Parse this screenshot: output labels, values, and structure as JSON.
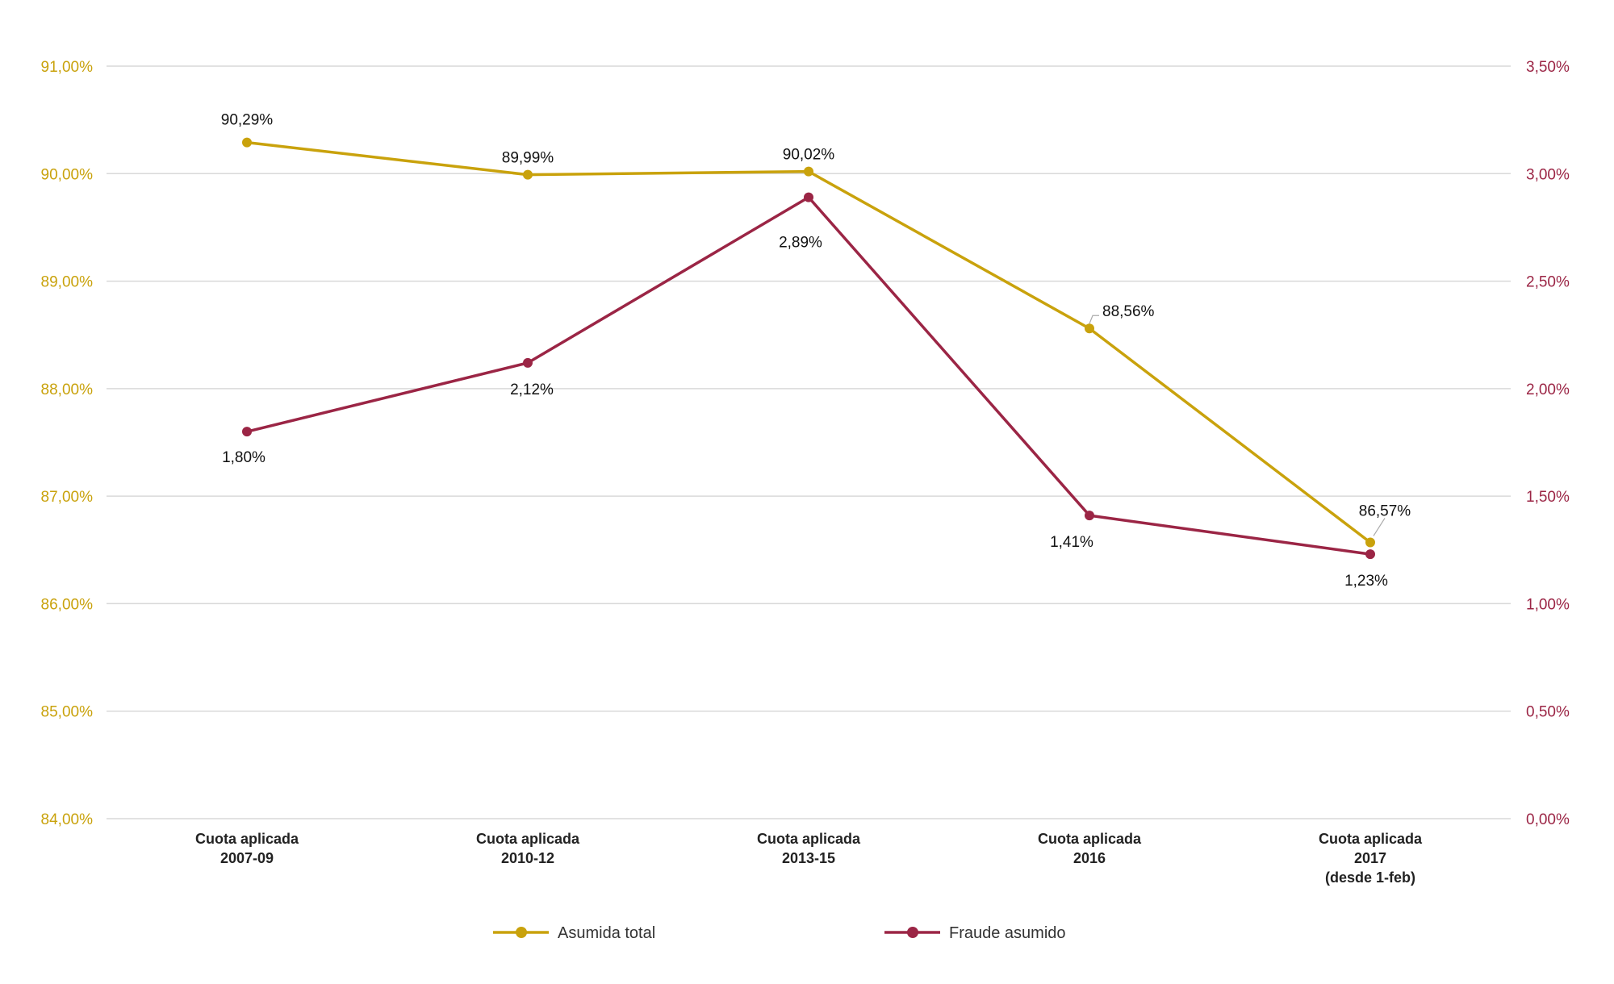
{
  "chart_data": {
    "type": "line",
    "title": "",
    "categories": [
      [
        "Cuota aplicada",
        "2007-09"
      ],
      [
        "Cuota aplicada",
        "2010-12"
      ],
      [
        "Cuota aplicada",
        "2013-15"
      ],
      [
        "Cuota aplicada",
        "2016"
      ],
      [
        "Cuota aplicada",
        "2017",
        "(desde 1-feb)"
      ]
    ],
    "y_left": {
      "min": 84,
      "max": 91,
      "step": 1,
      "ticks": [
        "84,00%",
        "85,00%",
        "86,00%",
        "87,00%",
        "88,00%",
        "89,00%",
        "90,00%",
        "91,00%"
      ],
      "color": "#c9a20c"
    },
    "y_right": {
      "min": 0,
      "max": 3.5,
      "step": 0.5,
      "ticks": [
        "0,00%",
        "0,50%",
        "1,00%",
        "1,50%",
        "2,00%",
        "2,50%",
        "3,00%",
        "3,50%"
      ],
      "color": "#9b2545"
    },
    "grid": true,
    "legend_position": "bottom",
    "series": [
      {
        "name": "Asumida total",
        "axis": "left",
        "color": "#c9a20c",
        "values": [
          90.29,
          89.99,
          90.02,
          88.56,
          86.57
        ],
        "labels": [
          "90,29%",
          "89,99%",
          "90,02%",
          "88,56%",
          "86,57%"
        ]
      },
      {
        "name": "Fraude asumido",
        "axis": "right",
        "color": "#9b2545",
        "values": [
          1.8,
          2.12,
          2.89,
          1.41,
          1.23
        ],
        "labels": [
          "1,80%",
          "2,12%",
          "2,89%",
          "1,41%",
          "1,23%"
        ]
      }
    ]
  }
}
